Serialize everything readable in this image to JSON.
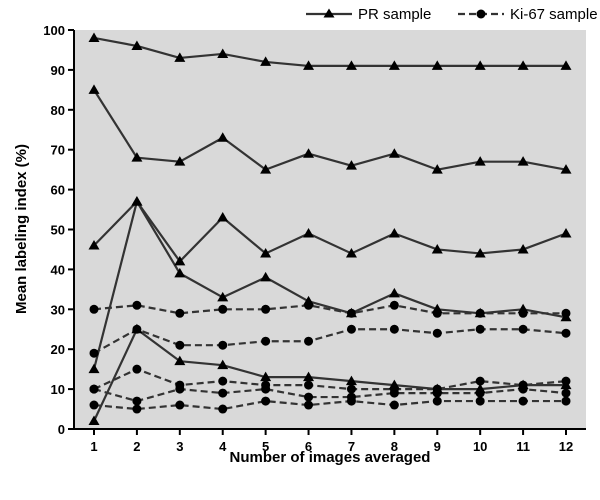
{
  "chart_data": {
    "type": "line",
    "xlabel": "Number of images averaged",
    "ylabel": "Mean labeling index (%)",
    "xlim": [
      1,
      12
    ],
    "ylim": [
      0,
      100
    ],
    "xticks": [
      1,
      2,
      3,
      4,
      5,
      6,
      7,
      8,
      9,
      10,
      11,
      12
    ],
    "yticks": [
      0,
      10,
      20,
      30,
      40,
      50,
      60,
      70,
      80,
      90,
      100
    ],
    "grid": false,
    "legend": "top-right",
    "background": "#d9d9d9",
    "x": [
      1,
      2,
      3,
      4,
      5,
      6,
      7,
      8,
      9,
      10,
      11,
      12
    ],
    "legend_entries": [
      {
        "label": "PR sample",
        "marker": "triangle",
        "line": "solid"
      },
      {
        "label": "Ki-67 sample",
        "marker": "circle",
        "line": "dashed"
      }
    ],
    "series": [
      {
        "group": "PR sample",
        "marker": "triangle",
        "line": "solid",
        "values": [
          98,
          96,
          93,
          94,
          92,
          91,
          91,
          91,
          91,
          91,
          91,
          91
        ]
      },
      {
        "group": "PR sample",
        "marker": "triangle",
        "line": "solid",
        "values": [
          85,
          68,
          67,
          73,
          65,
          69,
          66,
          69,
          65,
          67,
          67,
          65
        ]
      },
      {
        "group": "PR sample",
        "marker": "triangle",
        "line": "solid",
        "values": [
          46,
          57,
          42,
          53,
          44,
          49,
          44,
          49,
          45,
          44,
          45,
          49
        ]
      },
      {
        "group": "PR sample",
        "marker": "triangle",
        "line": "solid",
        "values": [
          15,
          57,
          39,
          33,
          38,
          32,
          29,
          34,
          30,
          29,
          30,
          28
        ]
      },
      {
        "group": "PR sample",
        "marker": "triangle",
        "line": "solid",
        "values": [
          2,
          25,
          17,
          16,
          13,
          13,
          12,
          11,
          10,
          10,
          11,
          11
        ]
      },
      {
        "group": "Ki-67 sample",
        "marker": "circle",
        "line": "dashed",
        "values": [
          30,
          31,
          29,
          30,
          30,
          31,
          29,
          31,
          29,
          29,
          29,
          29
        ]
      },
      {
        "group": "Ki-67 sample",
        "marker": "circle",
        "line": "dashed",
        "values": [
          19,
          25,
          21,
          21,
          22,
          22,
          25,
          25,
          24,
          25,
          25,
          24
        ]
      },
      {
        "group": "Ki-67 sample",
        "marker": "circle",
        "line": "dashed",
        "values": [
          10,
          15,
          11,
          12,
          11,
          11,
          10,
          10,
          10,
          12,
          11,
          12
        ]
      },
      {
        "group": "Ki-67 sample",
        "marker": "circle",
        "line": "dashed",
        "values": [
          10,
          7,
          10,
          9,
          10,
          8,
          8,
          9,
          9,
          9,
          10,
          9
        ]
      },
      {
        "group": "Ki-67 sample",
        "marker": "circle",
        "line": "dashed",
        "values": [
          6,
          5,
          6,
          5,
          7,
          6,
          7,
          6,
          7,
          7,
          7,
          7
        ]
      }
    ]
  }
}
